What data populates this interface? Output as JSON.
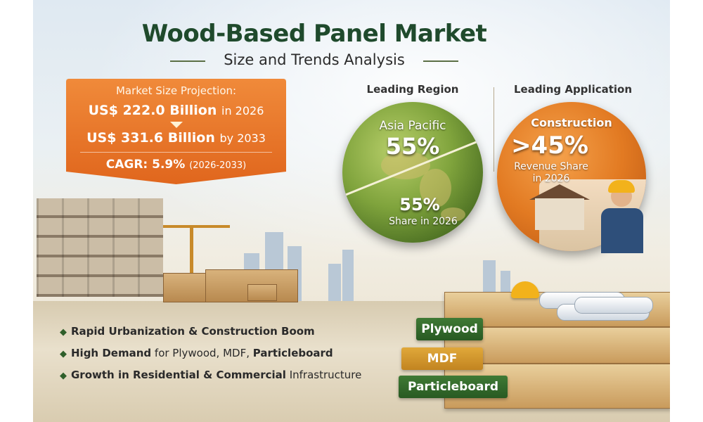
{
  "header": {
    "title": "Wood-Based Panel Market",
    "subtitle": "Size and Trends Analysis"
  },
  "market_size": {
    "label": "Market Size Projection:",
    "value_2026": "US$ 222.0 Billion",
    "suffix_2026": "in 2026",
    "value_2033": "US$ 331.6 Billion",
    "suffix_2033": "by 2033",
    "cagr": "CAGR: 5.9%",
    "cagr_period": "(2026-2033)"
  },
  "leading_region": {
    "label": "Leading Region",
    "name": "Asia Pacific",
    "percent": "55%",
    "share_percent": "55%",
    "share_text": "Share in 2026"
  },
  "leading_application": {
    "label": "Leading Application",
    "name": "Construction",
    "percent": ">45%",
    "share_line1": "Revenue Share",
    "share_line2": "in 2026"
  },
  "bullets": [
    {
      "bold": "Rapid Urbanization & Construction Boom",
      "rest": "",
      "bold2": ""
    },
    {
      "bold": "High Demand",
      "rest": " for Plywood, MDF, ",
      "bold2": "Particleboard"
    },
    {
      "bold": "Growth in Residential & Commercial",
      "rest": " Infrastructure",
      "bold2": ""
    }
  ],
  "product_tags": [
    "Plywood",
    "MDF",
    "Particleboard"
  ],
  "colors": {
    "title_green": "#1f4a2c",
    "accent_orange": "#e0661d",
    "globe_green": "#7fa33c",
    "tag_green": "#285a22",
    "tag_gold": "#c28420"
  }
}
